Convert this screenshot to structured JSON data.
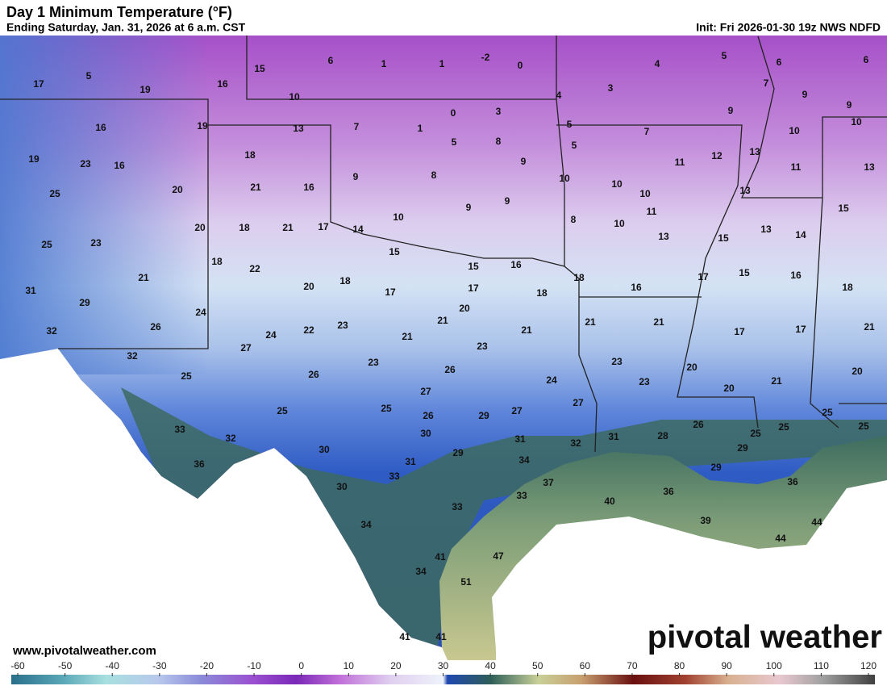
{
  "header": {
    "title": "Day 1 Minimum Temperature (°F)",
    "subtitle": "Ending Saturday, Jan. 31, 2026 at 6 a.m. CST",
    "init": "Init: Fri 2026-01-30 19z NWS NDFD"
  },
  "map": {
    "temperatures": [
      5,
      17,
      19,
      16,
      15,
      6,
      1,
      1,
      -2,
      0,
      4,
      5,
      6,
      6,
      7,
      3,
      9,
      9,
      4,
      10,
      16,
      19,
      13,
      7,
      1,
      0,
      3,
      9,
      10,
      5,
      5,
      7,
      10,
      5,
      8,
      19,
      23,
      16,
      18,
      11,
      12,
      13,
      9,
      11,
      13,
      9,
      8,
      21,
      16,
      20,
      10,
      10,
      10,
      13,
      25,
      9,
      9,
      11,
      15,
      10,
      8,
      10,
      20,
      18,
      21,
      17,
      14,
      13,
      14,
      13,
      15,
      25,
      23,
      15,
      15,
      16,
      18,
      22,
      15,
      16,
      18,
      17,
      21,
      31,
      20,
      18,
      17,
      17,
      18,
      16,
      18,
      29,
      20,
      24,
      26,
      32,
      24,
      22,
      23,
      21,
      21,
      21,
      21,
      17,
      17,
      21,
      27,
      21,
      23,
      32,
      23,
      23,
      25,
      26,
      26,
      24,
      23,
      20,
      21,
      20,
      20,
      27,
      27,
      25,
      25,
      26,
      29,
      27,
      25,
      26,
      33,
      32,
      30,
      31,
      32,
      31,
      28,
      25,
      25,
      25,
      30,
      29,
      36,
      31,
      34,
      33,
      37,
      29,
      29,
      36,
      30,
      36,
      33,
      40,
      33,
      34,
      39,
      44,
      44,
      47,
      41,
      34,
      51,
      41,
      41
    ]
  },
  "footer": {
    "website": "www.pivotalweather.com",
    "logo": "pivotal weather"
  },
  "colorbar": {
    "range": [
      -60,
      120
    ],
    "ticks": [
      -60,
      -50,
      -40,
      -30,
      -20,
      -10,
      0,
      10,
      20,
      30,
      40,
      50,
      60,
      70,
      80,
      90,
      100,
      110,
      120
    ]
  }
}
